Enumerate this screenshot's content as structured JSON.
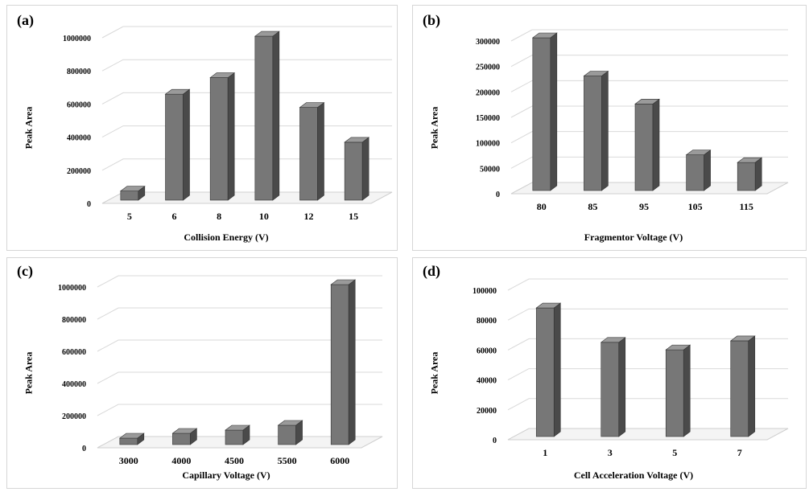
{
  "colors": {
    "bar_front": "#777777",
    "bar_side": "#4a4a4a",
    "bar_top": "#9a9a9a",
    "bar_outline": "#333333",
    "grid": "#d9d9d9"
  },
  "chart_data": [
    {
      "id": "a",
      "type": "bar",
      "panel_label": "(a)",
      "title": "",
      "xlabel": "Collision Energy (V)",
      "ylabel": "Peak Area",
      "categories": [
        "5",
        "6",
        "8",
        "10",
        "12",
        "15"
      ],
      "values": [
        55000,
        640000,
        740000,
        990000,
        560000,
        350000
      ],
      "ylim": [
        0,
        1000000
      ],
      "yticks": [
        0,
        200000,
        400000,
        600000,
        800000,
        1000000
      ],
      "grid": true,
      "style": "3d-column"
    },
    {
      "id": "b",
      "type": "bar",
      "panel_label": "(b)",
      "title": "",
      "xlabel": "Fragmentor Voltage (V)",
      "ylabel": "Peak Area",
      "categories": [
        "80",
        "85",
        "95",
        "105",
        "115"
      ],
      "values": [
        300000,
        225000,
        170000,
        70000,
        55000
      ],
      "ylim": [
        0,
        300000
      ],
      "yticks": [
        0,
        50000,
        100000,
        150000,
        200000,
        250000,
        300000
      ],
      "grid": true,
      "style": "3d-column"
    },
    {
      "id": "c",
      "type": "bar",
      "panel_label": "(c)",
      "title": "",
      "xlabel": "Capillary Voltage (V)",
      "ylabel": "Peak Area",
      "categories": [
        "3000",
        "4000",
        "4500",
        "5500",
        "6000"
      ],
      "values": [
        40000,
        70000,
        90000,
        120000,
        995000
      ],
      "ylim": [
        0,
        1000000
      ],
      "yticks": [
        0,
        200000,
        400000,
        600000,
        800000,
        1000000
      ],
      "grid": true,
      "style": "3d-column"
    },
    {
      "id": "d",
      "type": "bar",
      "panel_label": "(d)",
      "title": "",
      "xlabel": "Cell Acceleration Voltage (V)",
      "ylabel": "Peak Area",
      "categories": [
        "1",
        "3",
        "5",
        "7"
      ],
      "values": [
        86000,
        63000,
        58000,
        64000
      ],
      "ylim": [
        0,
        100000
      ],
      "yticks": [
        0,
        20000,
        40000,
        60000,
        80000,
        100000
      ],
      "grid": true,
      "style": "3d-column"
    }
  ]
}
